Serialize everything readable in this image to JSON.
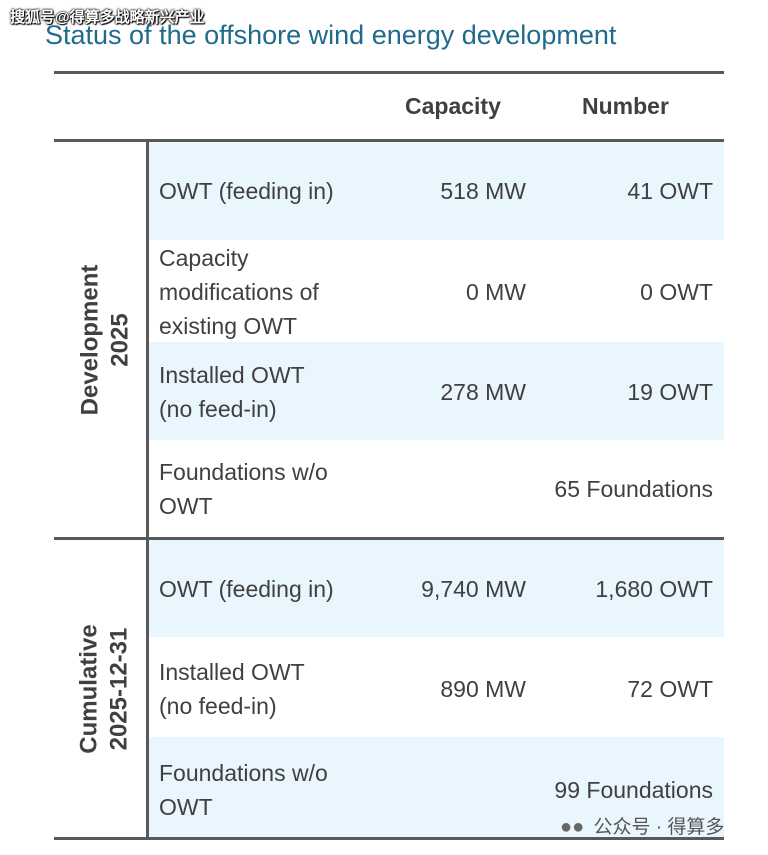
{
  "watermark_top": "搜狐号@得算多战略新兴产业",
  "title": "Status of the offshore wind energy development",
  "headers": {
    "capacity": "Capacity",
    "number": "Number"
  },
  "groups": [
    {
      "label_line1": "Development",
      "label_line2": "2025",
      "rows": [
        {
          "label_lines": [
            "OWT (feeding in)"
          ],
          "capacity": "518 MW",
          "number": "41 OWT"
        },
        {
          "label_lines": [
            "Capacity",
            "modifications of",
            "existing OWT"
          ],
          "capacity": "0 MW",
          "number": "0 OWT"
        },
        {
          "label_lines": [
            "Installed OWT",
            "(no feed-in)"
          ],
          "capacity": "278 MW",
          "number": "19 OWT"
        },
        {
          "label_lines": [
            "Foundations w/o",
            "OWT"
          ],
          "capacity": "",
          "number": "65 Foundations"
        }
      ]
    },
    {
      "label_line1": "Cumulative",
      "label_line2": "2025-12-31",
      "rows": [
        {
          "label_lines": [
            "OWT (feeding in)"
          ],
          "capacity": "9,740 MW",
          "number": "1,680 OWT"
        },
        {
          "label_lines": [
            "Installed OWT",
            "(no feed-in)"
          ],
          "capacity": "890 MW",
          "number": "72 OWT"
        },
        {
          "label_lines": [
            "Foundations w/o",
            "OWT"
          ],
          "capacity": "",
          "number": "99 Foundations"
        }
      ]
    }
  ],
  "watermark_bottom": {
    "icon": "wechat-icon",
    "text": "公众号 · 得算多"
  }
}
